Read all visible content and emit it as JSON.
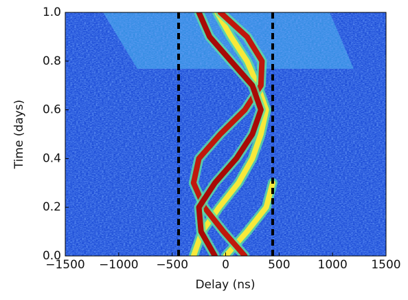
{
  "chart_data": {
    "type": "line",
    "xlabel": "Delay (ns)",
    "ylabel": "Time (days)",
    "y": [
      0,
      0.1,
      0.2,
      0.3,
      0.4,
      0.5,
      0.6,
      0.7,
      0.8,
      0.9,
      1.0
    ],
    "series": [
      {
        "color": "#f7e93a",
        "x": [
          -300,
          -220,
          -60,
          120,
          250,
          330,
          380,
          300,
          200,
          50,
          -80
        ]
      },
      {
        "color": "#f7e93a",
        "x": [
          0,
          200,
          380,
          440,
          null,
          null,
          null,
          null,
          null,
          null,
          null
        ]
      },
      {
        "color": "#c0180c",
        "x": [
          180,
          -20,
          -200,
          -300,
          -250,
          -50,
          180,
          330,
          340,
          200,
          -50
        ]
      },
      {
        "color": "#a80a06",
        "x": [
          -100,
          -230,
          -250,
          -100,
          100,
          250,
          330,
          250,
          50,
          -150,
          -250
        ]
      }
    ],
    "vlines": [
      -440,
      440
    ],
    "xlim": [
      -1500,
      1500
    ],
    "xticks": [
      {
        "value": -1500,
        "label": "−1500"
      },
      {
        "value": -1000,
        "label": "−1000"
      },
      {
        "value": -500,
        "label": "−500"
      },
      0,
      500,
      1000,
      1500
    ],
    "ylim": [
      0,
      1
    ],
    "yticks": [
      {
        "value": 0,
        "label": "0.0"
      },
      0.2,
      0.4,
      0.6,
      0.8,
      {
        "value": 1,
        "label": "1.0"
      }
    ]
  }
}
